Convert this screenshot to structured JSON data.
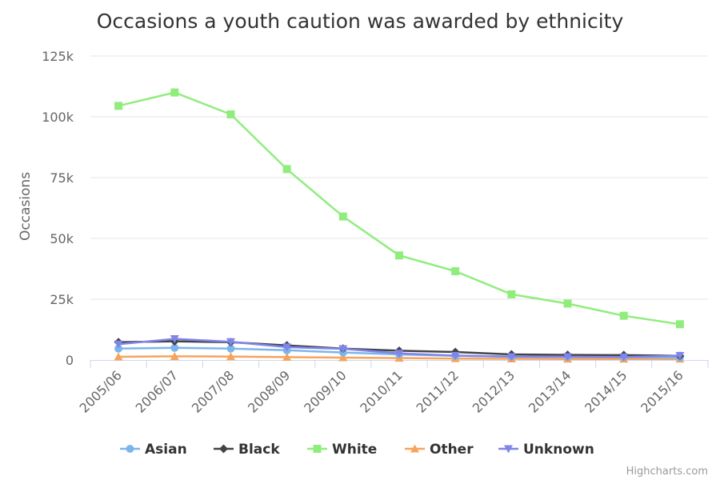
{
  "chart_data": {
    "type": "line",
    "title": "Occasions a youth caution was awarded by ethnicity",
    "ylabel": "Occasions",
    "xlabel": "",
    "categories": [
      "2005/06",
      "2006/07",
      "2007/08",
      "2008/09",
      "2009/10",
      "2010/11",
      "2011/12",
      "2012/13",
      "2013/14",
      "2014/15",
      "2015/16"
    ],
    "ylim": [
      0,
      125000
    ],
    "yticks": [
      0,
      25000,
      50000,
      75000,
      100000,
      125000
    ],
    "ytick_labels": [
      "0",
      "25k",
      "50k",
      "75k",
      "100k",
      "125k"
    ],
    "grid": true,
    "legend_position": "bottom-center",
    "series": [
      {
        "name": "Asian",
        "color": "#7cb5ec",
        "marker": "circle",
        "values": [
          4700,
          5000,
          4700,
          4000,
          3100,
          2300,
          1700,
          1400,
          1300,
          1200,
          1000
        ]
      },
      {
        "name": "Black",
        "color": "#434348",
        "marker": "diamond",
        "values": [
          7300,
          7700,
          7300,
          6000,
          4700,
          3800,
          3300,
          2300,
          2100,
          2000,
          1700
        ]
      },
      {
        "name": "White",
        "color": "#90ed7d",
        "marker": "square",
        "values": [
          104500,
          110000,
          101000,
          78500,
          59000,
          43000,
          36500,
          27000,
          23200,
          18200,
          14700
        ]
      },
      {
        "name": "Other",
        "color": "#f7a35c",
        "marker": "triangle",
        "values": [
          1300,
          1500,
          1400,
          1200,
          1000,
          800,
          600,
          500,
          400,
          400,
          400
        ]
      },
      {
        "name": "Unknown",
        "color": "#8085e9",
        "marker": "triangle-down",
        "values": [
          6500,
          8700,
          7500,
          5300,
          4600,
          2700,
          1800,
          1300,
          1300,
          1200,
          1800
        ]
      }
    ]
  },
  "credits": "Highcharts.com"
}
